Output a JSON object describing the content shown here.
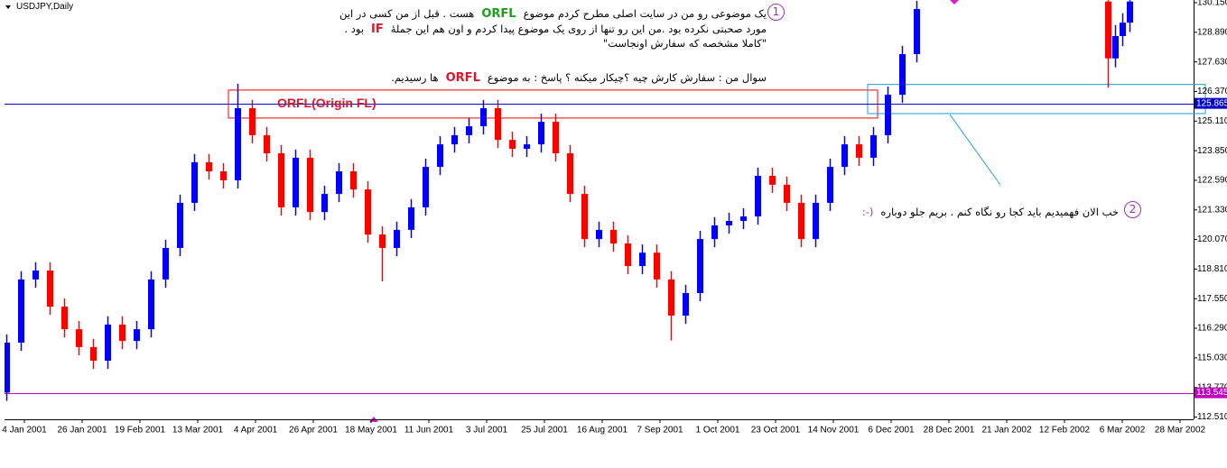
{
  "chart_data": {
    "type": "candlestick",
    "title": "USDJPY,Daily",
    "up_color": "#0000ff",
    "down_color": "#ff0000",
    "x": [
      -5,
      -1,
      3,
      7,
      11,
      15,
      19,
      23,
      27,
      31,
      35,
      39,
      43,
      47,
      51,
      55,
      59,
      63,
      67,
      71,
      75,
      79,
      83,
      87,
      91,
      95,
      99,
      103,
      107,
      111,
      115,
      119,
      123,
      127,
      131,
      135,
      139,
      143,
      147,
      151,
      155,
      159,
      163,
      167,
      171,
      175,
      179,
      183,
      187,
      191,
      195,
      199,
      203,
      207,
      211,
      215,
      219,
      223,
      227,
      231,
      235,
      239,
      243,
      247,
      300,
      302,
      304,
      306
    ],
    "open": [
      113.55,
      115.68,
      118.37,
      118.75,
      117.21,
      116.25,
      115.49,
      114.91,
      116.45,
      115.75,
      116.25,
      118.37,
      119.71,
      121.63,
      123.36,
      122.97,
      122.59,
      125.66,
      124.51,
      123.74,
      121.44,
      123.55,
      121.24,
      122.01,
      122.97,
      122.2,
      120.28,
      119.71,
      120.48,
      121.44,
      123.16,
      124.12,
      124.51,
      124.89,
      125.66,
      124.31,
      123.93,
      124.12,
      125.08,
      123.74,
      122.01,
      120.09,
      120.48,
      119.9,
      118.94,
      119.51,
      118.37,
      116.83,
      117.79,
      120.09,
      120.67,
      120.86,
      121.05,
      122.78,
      122.4,
      121.63,
      120.09,
      121.63,
      123.16,
      124.12,
      123.55,
      124.51,
      126.23,
      127.96,
      130.2,
      127.78,
      128.73,
      129.3
    ],
    "high": [
      116.03,
      118.72,
      119.1,
      119.1,
      117.56,
      116.6,
      115.84,
      116.8,
      116.8,
      116.6,
      118.72,
      120.06,
      121.98,
      123.71,
      123.71,
      123.32,
      126.7,
      126.01,
      124.86,
      124.09,
      123.9,
      123.9,
      122.36,
      123.32,
      123.32,
      122.55,
      120.63,
      120.83,
      121.79,
      123.51,
      124.47,
      124.86,
      125.24,
      126.01,
      126.01,
      124.66,
      124.47,
      125.43,
      125.43,
      124.09,
      122.36,
      120.83,
      120.83,
      120.25,
      119.86,
      119.86,
      118.72,
      118.14,
      120.44,
      121.02,
      121.21,
      121.4,
      123.13,
      123.13,
      122.75,
      121.98,
      121.98,
      123.51,
      124.47,
      124.47,
      124.86,
      126.58,
      128.31,
      130.23,
      130.26,
      129.2,
      129.7,
      130.26
    ],
    "low": [
      113.2,
      115.33,
      118.02,
      116.86,
      115.9,
      115.14,
      114.56,
      114.56,
      115.4,
      115.4,
      115.9,
      118.02,
      119.36,
      121.28,
      122.62,
      122.24,
      122.24,
      124.16,
      123.39,
      121.09,
      121.09,
      120.89,
      120.89,
      121.66,
      121.85,
      119.93,
      118.29,
      119.36,
      120.13,
      121.09,
      122.81,
      123.77,
      124.16,
      124.54,
      123.96,
      123.58,
      123.58,
      123.77,
      123.39,
      121.66,
      119.74,
      119.74,
      119.55,
      118.59,
      118.59,
      118.02,
      115.77,
      116.48,
      117.44,
      119.74,
      120.32,
      120.51,
      120.7,
      122.05,
      121.28,
      119.74,
      119.74,
      121.28,
      122.81,
      123.2,
      123.2,
      124.16,
      125.88,
      127.61,
      126.54,
      127.4,
      128.3,
      128.9
    ],
    "close": [
      115.68,
      118.37,
      118.75,
      117.21,
      116.25,
      115.49,
      114.91,
      116.45,
      115.75,
      116.25,
      118.37,
      119.71,
      121.63,
      123.36,
      122.97,
      122.59,
      125.66,
      124.51,
      123.74,
      121.44,
      123.55,
      121.24,
      122.01,
      122.97,
      122.2,
      120.28,
      119.71,
      120.48,
      121.44,
      123.16,
      124.12,
      124.51,
      124.89,
      125.66,
      124.31,
      123.93,
      124.12,
      125.08,
      123.74,
      122.01,
      120.09,
      120.48,
      119.9,
      118.94,
      119.51,
      118.37,
      116.83,
      117.79,
      120.09,
      120.67,
      120.86,
      121.05,
      122.78,
      122.4,
      121.63,
      120.09,
      121.63,
      123.16,
      124.12,
      123.55,
      124.51,
      126.23,
      127.96,
      129.88,
      127.78,
      128.73,
      129.3,
      130.2
    ],
    "xlim": [
      -5.5,
      323.75
    ],
    "ylim": [
      112.415,
      130.265
    ],
    "xticks": [
      {
        "value": 0,
        "label": "4 Jan 2001"
      },
      {
        "value": 16,
        "label": "26 Jan 2001"
      },
      {
        "value": 32,
        "label": "19 Feb 2001"
      },
      {
        "value": 48,
        "label": "13 Mar 2001"
      },
      {
        "value": 64,
        "label": "4 Apr 2001"
      },
      {
        "value": 80,
        "label": "26 Apr 2001"
      },
      {
        "value": 96,
        "label": "18 May 2001"
      },
      {
        "value": 112,
        "label": "11 Jun 2001"
      },
      {
        "value": 128,
        "label": "3 Jul 2001"
      },
      {
        "value": 144,
        "label": "25 Jul 2001"
      },
      {
        "value": 160,
        "label": "16 Aug 2001"
      },
      {
        "value": 176,
        "label": "7 Sep 2001"
      },
      {
        "value": 192,
        "label": "1 Oct 2001"
      },
      {
        "value": 208,
        "label": "23 Oct 2001"
      },
      {
        "value": 224,
        "label": "14 Nov 2001"
      },
      {
        "value": 240,
        "label": "6 Dec 2001"
      },
      {
        "value": 256,
        "label": "28 Dec 2001"
      },
      {
        "value": 272,
        "label": "21 Jan 2002"
      },
      {
        "value": 288,
        "label": "12 Feb 2002"
      },
      {
        "value": 304,
        "label": "6 Mar 2002"
      },
      {
        "value": 320,
        "label": "28 Mar 2002"
      }
    ],
    "yticks": [
      {
        "value": 130.15,
        "label": "130.150"
      },
      {
        "value": 128.89,
        "label": "128.890"
      },
      {
        "value": 127.63,
        "label": "127.630"
      },
      {
        "value": 126.37,
        "label": "126.370"
      },
      {
        "value": 125.11,
        "label": "125.110"
      },
      {
        "value": 123.85,
        "label": "123.850"
      },
      {
        "value": 122.59,
        "label": "122.590"
      },
      {
        "value": 121.33,
        "label": "121.330"
      },
      {
        "value": 120.07,
        "label": "120.070"
      },
      {
        "value": 118.81,
        "label": "118.810"
      },
      {
        "value": 117.55,
        "label": "117.550"
      },
      {
        "value": 116.29,
        "label": "116.290"
      },
      {
        "value": 115.03,
        "label": "115.030"
      },
      {
        "value": 113.77,
        "label": "113.770"
      },
      {
        "value": 112.51,
        "label": "112.510"
      }
    ],
    "horizontal_lines": [
      {
        "value": 125.865,
        "color": "#0000cd"
      },
      {
        "value": 113.545,
        "color": "#c000c0"
      }
    ],
    "rectangles": [
      {
        "x": [
          56.5,
          236.25
        ],
        "y": [
          125.24,
          126.43
        ],
        "color": "#ff0000"
      },
      {
        "x": [
          233.5,
          327
        ],
        "y": [
          125.43,
          126.67
        ],
        "color": "#1aa0c8"
      }
    ],
    "zone_label": {
      "text": "ORFL(Origin FL)",
      "color": "#e0142a"
    },
    "notes": [
      {
        "marker": "1",
        "lines": [
          [
            {
              "text": "یک موضوعی رو من در سایت اصلی مطرح کردم موضوع",
              "color": "#000000"
            },
            {
              "text": "ORFL",
              "color": "#1aa01a"
            },
            {
              "text": "هست . قبل از من کسی در این",
              "color": "#000000"
            }
          ],
          [
            {
              "text": "مورد صحبتی نکرده بود .من این رو تنها از روی یک موضوع پیدا کردم و اون هم این جملهٔ",
              "color": "#000000"
            },
            {
              "text": "IF",
              "color": "#e0142a"
            },
            {
              "text": "بود .",
              "color": "#000000"
            }
          ],
          [
            {
              "text": "\"کاملا مشخصه که سفارش اونجاست\"",
              "color": "#000000"
            }
          ],
          [
            {
              "text": "سوال من : سفارش کارش چیه ؟چیکار میکنه ؟ پاسخ : به موضوع",
              "color": "#000000"
            },
            {
              "text": "ORFL",
              "color": "#e0142a"
            },
            {
              "text": "ها رسیدیم.",
              "color": "#000000"
            }
          ]
        ]
      },
      {
        "marker": "2",
        "lines": [
          [
            {
              "text": "خب الان فهمیدیم باید کجا رو نگاه کنم . بریم جلو دوباره",
              "color": "#000000"
            },
            {
              "text": "(-:",
              "color": "#9b30b0"
            }
          ]
        ]
      }
    ]
  }
}
